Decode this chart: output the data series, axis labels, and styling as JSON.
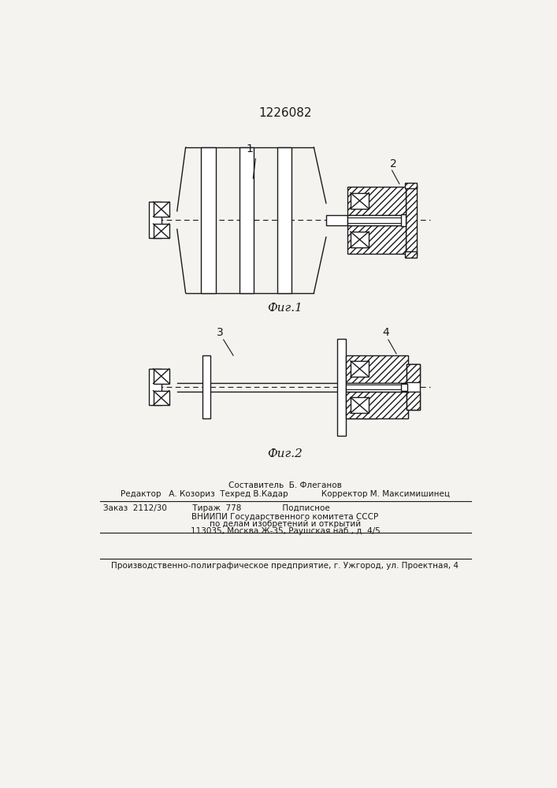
{
  "title": "1226082",
  "fig1_label": "Фиг.1",
  "fig2_label": "Фиг.2",
  "label1": "1",
  "label2": "2",
  "label3": "3",
  "label4": "4",
  "footer_line1": "Составитель  Б. Флеганов",
  "footer_line2": "Редактор   А. Козориз  Техред В.Кадар             Корректор М. Максимишинец",
  "footer_line3": "Заказ  2112/30          Тираж  778                Подписное",
  "footer_line4": "ВНИИПИ Государственного комитета СССР",
  "footer_line5": "по делам изобретений и открытий",
  "footer_line6": "113035, Москва Ж-35, Раушская наб., д. 4/5",
  "footer_line7": "Производственно-полиграфическое предприятие, г. Ужгород, ул. Проектная, 4",
  "bg_color": "#f5f3f0",
  "line_color": "#1a1a1a"
}
